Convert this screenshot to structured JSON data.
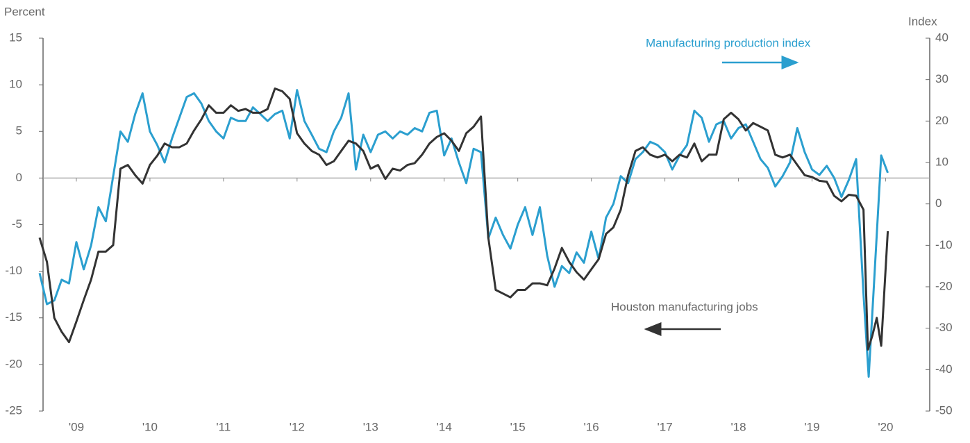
{
  "chart_data": {
    "type": "line",
    "y_label": "Percent",
    "y2_label": "Index",
    "xlim": [
      2009,
      2021.1
    ],
    "xticks": [
      {
        "value": 2009.5,
        "label": "'09"
      },
      {
        "value": 2010.5,
        "label": "'10"
      },
      {
        "value": 2011.5,
        "label": "'11"
      },
      {
        "value": 2012.5,
        "label": "'12"
      },
      {
        "value": 2013.5,
        "label": "'13"
      },
      {
        "value": 2014.5,
        "label": "'14"
      },
      {
        "value": 2015.5,
        "label": "'15"
      },
      {
        "value": 2016.5,
        "label": "'16"
      },
      {
        "value": 2017.5,
        "label": "'17"
      },
      {
        "value": 2018.5,
        "label": "'18"
      },
      {
        "value": 2019.5,
        "label": "'19"
      },
      {
        "value": 2020.5,
        "label": "'20"
      }
    ],
    "ylim": [
      -25,
      15
    ],
    "yticks": [
      15,
      10,
      5,
      0,
      -5,
      -10,
      -15,
      -20,
      -25
    ],
    "y2lim": [
      -50,
      40
    ],
    "y2ticks": [
      40,
      30,
      20,
      10,
      0,
      -10,
      -20,
      -30,
      -40,
      -50
    ],
    "grid": false,
    "series": [
      {
        "name": "Manufacturing production index",
        "color": "#2b9fcf",
        "axis": "y2",
        "x": [
          2009,
          2009.1,
          2009.2,
          2009.3,
          2009.4,
          2009.5,
          2009.6,
          2009.7,
          2009.8,
          2009.9,
          2010,
          2010.1,
          2010.2,
          2010.3,
          2010.4,
          2010.5,
          2010.6,
          2010.7,
          2010.8,
          2010.9,
          2011,
          2011.1,
          2011.2,
          2011.3,
          2011.4,
          2011.5,
          2011.6,
          2011.7,
          2011.8,
          2011.9,
          2012,
          2012.1,
          2012.2,
          2012.3,
          2012.4,
          2012.5,
          2012.6,
          2012.7,
          2012.8,
          2012.9,
          2013,
          2013.1,
          2013.2,
          2013.3,
          2013.4,
          2013.5,
          2013.6,
          2013.7,
          2013.8,
          2013.9,
          2014,
          2014.1,
          2014.2,
          2014.3,
          2014.4,
          2014.5,
          2014.6,
          2014.7,
          2014.8,
          2014.9,
          2015,
          2015.1,
          2015.2,
          2015.3,
          2015.4,
          2015.5,
          2015.6,
          2015.7,
          2015.8,
          2015.9,
          2016,
          2016.1,
          2016.2,
          2016.3,
          2016.4,
          2016.5,
          2016.6,
          2016.7,
          2016.8,
          2016.9,
          2017,
          2017.1,
          2017.2,
          2017.3,
          2017.4,
          2017.5,
          2017.6,
          2017.7,
          2017.8,
          2017.9,
          2018,
          2018.1,
          2018.2,
          2018.3,
          2018.4,
          2018.5,
          2018.6,
          2018.7,
          2018.8,
          2018.9,
          2019,
          2019.1,
          2019.2,
          2019.3,
          2019.4,
          2019.5,
          2019.6,
          2019.7,
          2019.8,
          2019.9,
          2020,
          2020.1,
          2020.2,
          2020.27,
          2020.34,
          2020.44,
          2020.53
        ],
        "values": [
          -16.7,
          -24.2,
          -23.3,
          -18.3,
          -19.2,
          -9.2,
          -15.8,
          -10,
          -0.8,
          -4.2,
          6.7,
          17.5,
          15,
          21.7,
          26.7,
          17.5,
          14.2,
          10,
          15.8,
          20.8,
          25.8,
          26.7,
          24.2,
          20,
          17.5,
          15.8,
          20.8,
          20,
          20,
          23.3,
          21.7,
          20,
          21.7,
          22.5,
          15.8,
          27.5,
          20,
          16.7,
          13.3,
          12.5,
          17.5,
          20.8,
          26.7,
          8.3,
          16.7,
          12.5,
          16.7,
          17.5,
          15.8,
          17.5,
          16.7,
          18.3,
          17.5,
          22,
          22.5,
          11.7,
          15.8,
          10,
          5,
          13.3,
          12.5,
          -8.3,
          -3.3,
          -7.5,
          -10.8,
          -5,
          -0.8,
          -7.5,
          -0.8,
          -12.5,
          -20,
          -15,
          -16.7,
          -11.7,
          -14.2,
          -6.7,
          -13.3,
          -3.3,
          0,
          6.7,
          5,
          10.8,
          12.5,
          15,
          14.2,
          12.5,
          8.3,
          11.7,
          14.2,
          22.5,
          20.8,
          15,
          19.2,
          20,
          15.8,
          18.3,
          19.2,
          15,
          10.8,
          8.7,
          4.2,
          6.7,
          10,
          18.3,
          12.5,
          8.3,
          7,
          9.2,
          6.3,
          1.7,
          5.8,
          10.8,
          -21.7,
          -41.7,
          -20,
          11.7,
          7.5
        ]
      },
      {
        "name": "Houston manufacturing jobs",
        "color": "#333333",
        "x": [
          2009,
          2009.1,
          2009.2,
          2009.3,
          2009.4,
          2009.5,
          2009.6,
          2009.7,
          2009.8,
          2009.9,
          2010,
          2010.1,
          2010.2,
          2010.3,
          2010.4,
          2010.5,
          2010.6,
          2010.7,
          2010.8,
          2010.9,
          2011,
          2011.1,
          2011.2,
          2011.3,
          2011.4,
          2011.5,
          2011.6,
          2011.7,
          2011.8,
          2011.9,
          2012,
          2012.1,
          2012.2,
          2012.3,
          2012.4,
          2012.5,
          2012.6,
          2012.7,
          2012.8,
          2012.9,
          2013,
          2013.1,
          2013.2,
          2013.3,
          2013.4,
          2013.5,
          2013.6,
          2013.7,
          2013.8,
          2013.9,
          2014,
          2014.1,
          2014.2,
          2014.3,
          2014.4,
          2014.5,
          2014.6,
          2014.7,
          2014.8,
          2014.9,
          2015,
          2015.1,
          2015.2,
          2015.3,
          2015.4,
          2015.5,
          2015.6,
          2015.7,
          2015.8,
          2015.9,
          2016,
          2016.1,
          2016.2,
          2016.3,
          2016.4,
          2016.5,
          2016.6,
          2016.7,
          2016.8,
          2016.9,
          2017,
          2017.1,
          2017.2,
          2017.3,
          2017.4,
          2017.5,
          2017.6,
          2017.7,
          2017.8,
          2017.9,
          2018,
          2018.1,
          2018.2,
          2018.3,
          2018.4,
          2018.5,
          2018.6,
          2018.7,
          2018.8,
          2018.9,
          2019,
          2019.1,
          2019.2,
          2019.3,
          2019.4,
          2019.5,
          2019.6,
          2019.7,
          2019.8,
          2019.9,
          2020,
          2020.1,
          2020.2,
          2020.26,
          2020.32,
          2020.38,
          2020.44,
          2020.53
        ],
        "values": [
          -6.4,
          -9,
          -15,
          -16.5,
          -17.6,
          -15.4,
          -13.1,
          -10.9,
          -7.9,
          -7.9,
          -7.2,
          1,
          1.4,
          0.3,
          -0.6,
          1.4,
          2.4,
          3.7,
          3.3,
          3.3,
          3.7,
          5.1,
          6.3,
          7.8,
          7,
          7,
          7.8,
          7.2,
          7.4,
          7,
          7,
          7.4,
          9.6,
          9.3,
          8.5,
          4.8,
          3.7,
          2.9,
          2.5,
          1.4,
          1.8,
          2.9,
          4,
          3.7,
          2.9,
          1,
          1.4,
          -0.1,
          1,
          0.8,
          1.4,
          1.6,
          2.5,
          3.7,
          4.4,
          4.8,
          4,
          2.9,
          4.8,
          5.5,
          6.6,
          -6.4,
          -12,
          -12.4,
          -12.8,
          -12,
          -12,
          -11.3,
          -11.3,
          -11.5,
          -9.7,
          -7.5,
          -9,
          -10.1,
          -10.9,
          -9.8,
          -8.7,
          -6,
          -5.3,
          -3.4,
          0.3,
          2.9,
          3.3,
          2.5,
          2.2,
          2.5,
          1.8,
          2.5,
          2.2,
          3.7,
          1.8,
          2.5,
          2.5,
          6.3,
          7,
          6.3,
          5.1,
          5.9,
          5.5,
          5.1,
          2.5,
          2.2,
          2.5,
          1.4,
          0.3,
          0.1,
          -0.3,
          -0.4,
          -1.9,
          -2.5,
          -1.8,
          -1.9,
          -3.4,
          -18.4,
          -16.9,
          -15,
          -18,
          -5.7
        ]
      }
    ]
  }
}
